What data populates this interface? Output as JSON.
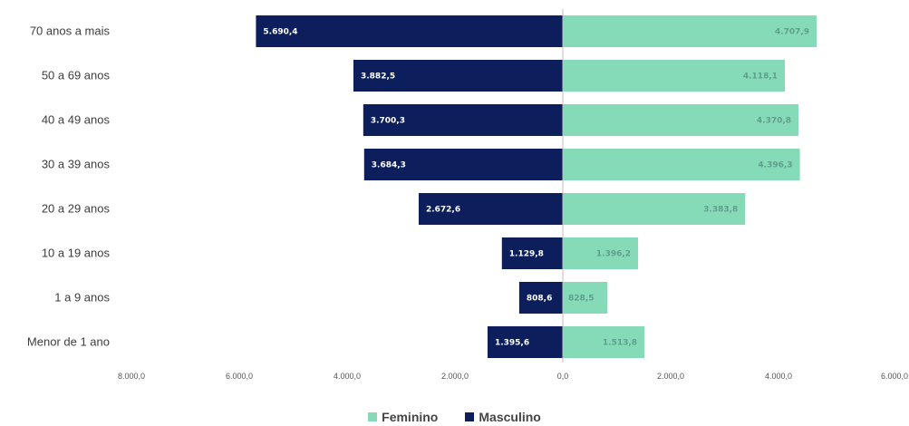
{
  "chart_data": {
    "type": "bar",
    "orientation": "horizontal-diverging",
    "categories": [
      "70 anos a mais",
      "50 a 69 anos",
      "40 a 49 anos",
      "30 a 39 anos",
      "20 a 29 anos",
      "10 a 19 anos",
      "1 a 9 anos",
      "Menor de 1 ano"
    ],
    "series": [
      {
        "name": "Masculino",
        "color": "#0c1f5c",
        "values": [
          5690.4,
          3882.5,
          3700.3,
          3684.3,
          2672.6,
          1129.8,
          808.6,
          1395.6
        ],
        "labels": [
          "5.690,4",
          "3.882,5",
          "3.700,3",
          "3.684,3",
          "2.672,6",
          "1.129,8",
          "808,6",
          "1.395,6"
        ]
      },
      {
        "name": "Feminino",
        "color": "#85dbb8",
        "values": [
          4707.9,
          4118.1,
          4370.8,
          4396.3,
          3383.8,
          1396.2,
          828.5,
          1513.8
        ],
        "labels": [
          "4.707,9",
          "4.118,1",
          "4.370,8",
          "4.396,3",
          "3.383,8",
          "1.396,2",
          "828,5",
          "1.513,8"
        ]
      }
    ],
    "xlim": [
      -8000,
      6000
    ],
    "xticks": [
      -8000,
      -6000,
      -4000,
      -2000,
      0,
      2000,
      4000,
      6000
    ],
    "xtick_labels": [
      "8.000,0",
      "6.000,0",
      "4.000,0",
      "2.000,0",
      "0,0",
      "2.000,0",
      "4.000,0",
      "6.000,0"
    ],
    "grid": false,
    "legend_position": "bottom-center"
  },
  "legend": {
    "feminino": "Feminino",
    "masculino": "Masculino"
  }
}
